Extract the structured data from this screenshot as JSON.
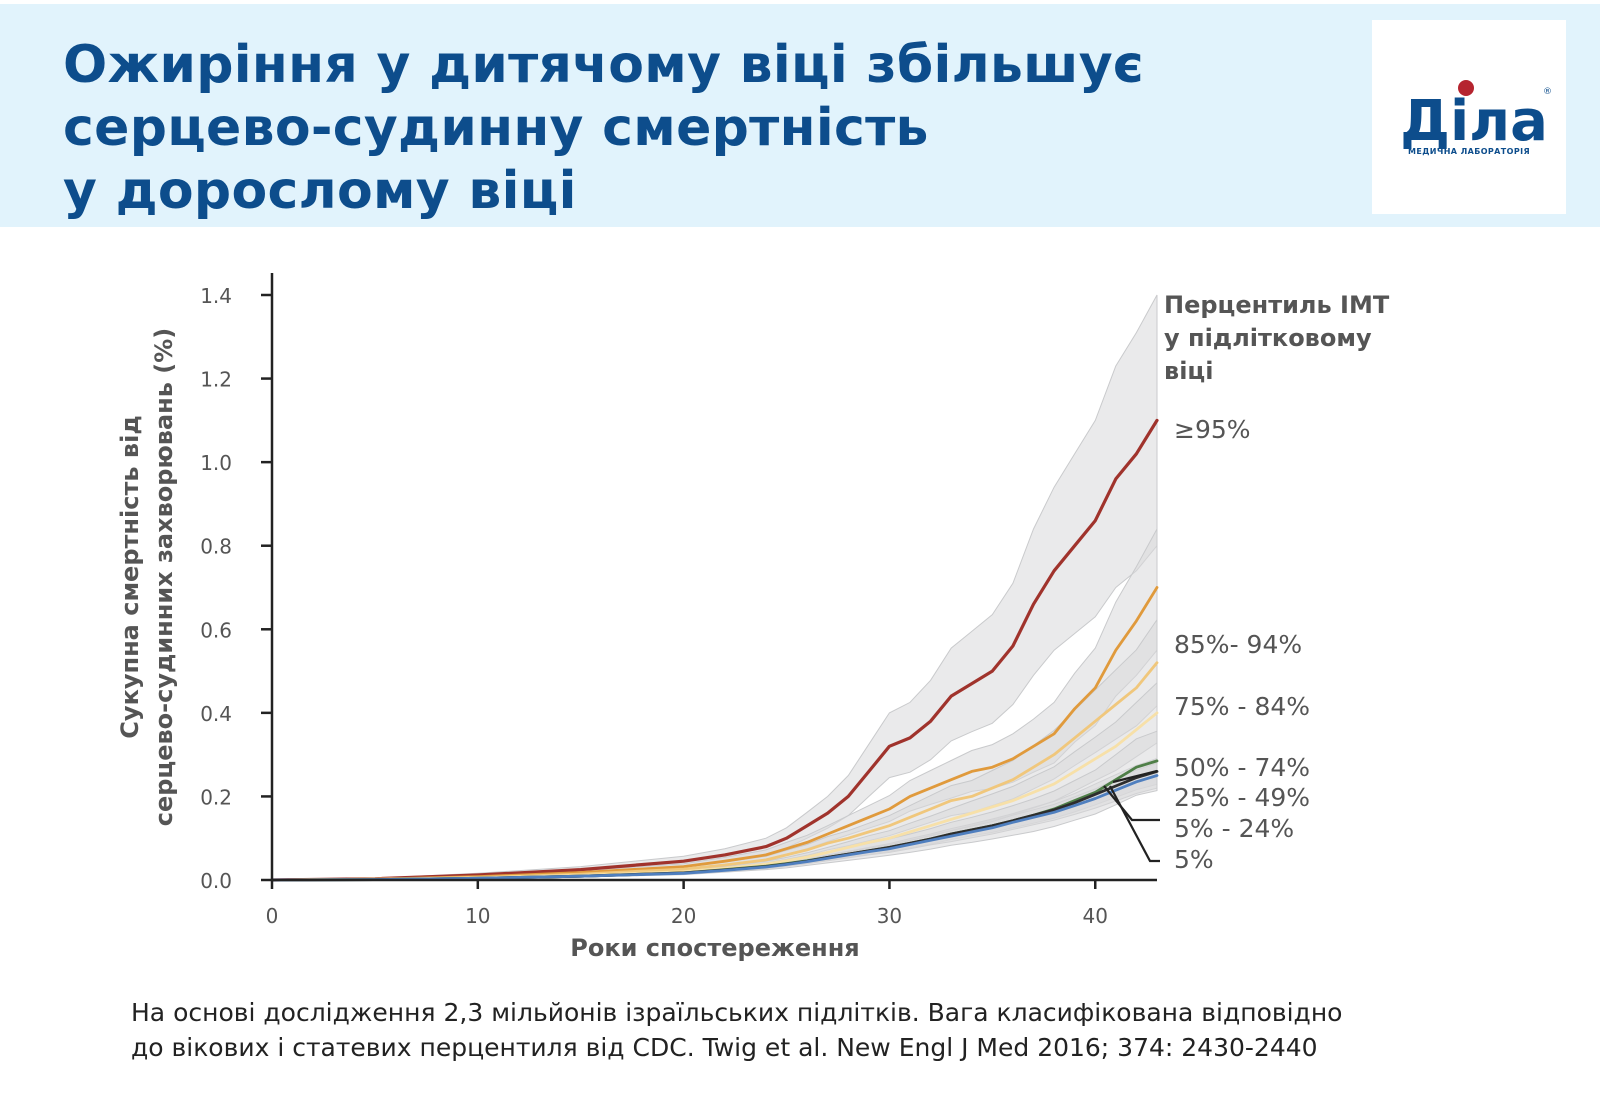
{
  "header": {
    "title_lines": [
      "Ожиріння у дитячому віці збільшує",
      "серцево-судинну смертність",
      "у дорослому віці"
    ]
  },
  "logo": {
    "text": "Діла",
    "subtitle": "МЕДИЧНА ЛАБОРАТОРІЯ",
    "registered": "®",
    "colors": {
      "primary": "#0d4d8c",
      "dot": "#b5242f"
    }
  },
  "chart_data": {
    "type": "line",
    "xlabel": "Роки спостереження",
    "ylabel_lines": [
      "Сукупна смертність від",
      "серцево-судинних захворювань (%)"
    ],
    "xlim": [
      0,
      43
    ],
    "ylim": [
      0,
      1.4
    ],
    "xticks": [
      0,
      10,
      20,
      30,
      40
    ],
    "yticks": [
      0.0,
      0.2,
      0.4,
      0.6,
      0.8,
      1.0,
      1.2,
      1.4
    ],
    "ytick_labels": [
      "0.0",
      "0.2",
      "0.4",
      "0.6",
      "0.8",
      "1.0",
      "1.2",
      "1.4"
    ],
    "legend_title_lines": [
      "Перцентиль ІМТ",
      "у підлітковому",
      "віці"
    ],
    "grid": false,
    "confidence_band_color": "#d8d9db",
    "series": [
      {
        "name": "≥95%",
        "color": "#a0332c",
        "x": [
          0,
          5,
          10,
          15,
          20,
          22,
          24,
          25,
          26,
          27,
          28,
          29,
          30,
          31,
          32,
          33,
          34,
          35,
          36,
          37,
          38,
          39,
          40,
          41,
          42,
          43
        ],
        "y": [
          0,
          0.003,
          0.012,
          0.025,
          0.045,
          0.06,
          0.08,
          0.1,
          0.13,
          0.16,
          0.2,
          0.26,
          0.32,
          0.34,
          0.38,
          0.44,
          0.47,
          0.5,
          0.56,
          0.66,
          0.74,
          0.8,
          0.86,
          0.96,
          1.02,
          1.1
        ],
        "ci_lower": [
          0,
          0.002,
          0.008,
          0.018,
          0.034,
          0.046,
          0.062,
          0.077,
          0.1,
          0.124,
          0.154,
          0.2,
          0.245,
          0.258,
          0.288,
          0.333,
          0.355,
          0.375,
          0.42,
          0.49,
          0.55,
          0.59,
          0.63,
          0.7,
          0.74,
          0.8
        ],
        "ci_upper": [
          0,
          0.004,
          0.016,
          0.032,
          0.057,
          0.075,
          0.1,
          0.125,
          0.162,
          0.2,
          0.25,
          0.325,
          0.4,
          0.425,
          0.478,
          0.555,
          0.595,
          0.635,
          0.71,
          0.84,
          0.94,
          1.02,
          1.1,
          1.23,
          1.31,
          1.4
        ]
      },
      {
        "name": "85%- 94%",
        "color": "#e09a3c",
        "x": [
          0,
          5,
          10,
          15,
          20,
          22,
          24,
          25,
          26,
          27,
          28,
          29,
          30,
          31,
          32,
          33,
          34,
          35,
          36,
          37,
          38,
          39,
          40,
          41,
          42,
          43
        ],
        "y": [
          0,
          0.002,
          0.008,
          0.018,
          0.032,
          0.045,
          0.06,
          0.075,
          0.09,
          0.11,
          0.13,
          0.15,
          0.17,
          0.2,
          0.22,
          0.24,
          0.26,
          0.27,
          0.29,
          0.32,
          0.35,
          0.41,
          0.46,
          0.55,
          0.62,
          0.7
        ],
        "ci_lower": [
          0,
          0.001,
          0.006,
          0.014,
          0.026,
          0.037,
          0.05,
          0.062,
          0.075,
          0.092,
          0.108,
          0.124,
          0.14,
          0.165,
          0.181,
          0.196,
          0.212,
          0.219,
          0.234,
          0.258,
          0.28,
          0.33,
          0.37,
          0.44,
          0.49,
          0.55
        ],
        "ci_upper": [
          0,
          0.003,
          0.01,
          0.022,
          0.039,
          0.054,
          0.072,
          0.09,
          0.107,
          0.13,
          0.154,
          0.178,
          0.202,
          0.238,
          0.262,
          0.286,
          0.31,
          0.324,
          0.35,
          0.385,
          0.425,
          0.495,
          0.555,
          0.665,
          0.75,
          0.84
        ]
      },
      {
        "name": "75% - 84%",
        "color": "#f0c77c",
        "x": [
          0,
          5,
          10,
          15,
          20,
          22,
          24,
          25,
          26,
          27,
          28,
          29,
          30,
          31,
          32,
          33,
          34,
          35,
          36,
          37,
          38,
          39,
          40,
          41,
          42,
          43
        ],
        "y": [
          0,
          0.002,
          0.006,
          0.014,
          0.026,
          0.036,
          0.048,
          0.06,
          0.072,
          0.088,
          0.1,
          0.115,
          0.13,
          0.15,
          0.17,
          0.19,
          0.2,
          0.22,
          0.24,
          0.27,
          0.3,
          0.34,
          0.38,
          0.42,
          0.46,
          0.52
        ],
        "ci_lower": [
          0,
          0.001,
          0.004,
          0.011,
          0.021,
          0.029,
          0.039,
          0.049,
          0.059,
          0.072,
          0.082,
          0.094,
          0.106,
          0.122,
          0.138,
          0.154,
          0.162,
          0.178,
          0.194,
          0.218,
          0.242,
          0.274,
          0.305,
          0.337,
          0.369,
          0.417
        ],
        "ci_upper": [
          0,
          0.003,
          0.008,
          0.017,
          0.031,
          0.043,
          0.057,
          0.071,
          0.085,
          0.104,
          0.118,
          0.136,
          0.154,
          0.178,
          0.202,
          0.226,
          0.238,
          0.262,
          0.286,
          0.322,
          0.358,
          0.406,
          0.455,
          0.503,
          0.551,
          0.623
        ]
      },
      {
        "name": "50% - 74%",
        "color": "#f7e0a8",
        "x": [
          0,
          5,
          10,
          15,
          20,
          22,
          24,
          25,
          26,
          27,
          28,
          29,
          30,
          31,
          32,
          33,
          34,
          35,
          36,
          37,
          38,
          39,
          40,
          41,
          42,
          43
        ],
        "y": [
          0,
          0.002,
          0.005,
          0.011,
          0.02,
          0.028,
          0.038,
          0.046,
          0.055,
          0.066,
          0.078,
          0.09,
          0.1,
          0.115,
          0.13,
          0.145,
          0.16,
          0.175,
          0.19,
          0.21,
          0.23,
          0.26,
          0.29,
          0.32,
          0.36,
          0.4
        ],
        "ci_lower": [
          0,
          0.001,
          0.004,
          0.009,
          0.016,
          0.023,
          0.031,
          0.038,
          0.045,
          0.054,
          0.064,
          0.074,
          0.082,
          0.094,
          0.107,
          0.119,
          0.131,
          0.143,
          0.156,
          0.172,
          0.189,
          0.213,
          0.238,
          0.262,
          0.295,
          0.328
        ],
        "ci_upper": [
          0,
          0.003,
          0.006,
          0.013,
          0.024,
          0.033,
          0.045,
          0.054,
          0.065,
          0.078,
          0.092,
          0.106,
          0.118,
          0.136,
          0.153,
          0.171,
          0.189,
          0.206,
          0.224,
          0.248,
          0.271,
          0.307,
          0.342,
          0.378,
          0.425,
          0.472
        ]
      },
      {
        "name": "25% - 49%",
        "color": "#2d2d2d",
        "x": [
          0,
          5,
          10,
          15,
          20,
          22,
          24,
          25,
          26,
          27,
          28,
          29,
          30,
          31,
          32,
          33,
          34,
          35,
          36,
          37,
          38,
          39,
          40,
          41,
          42,
          43
        ],
        "y": [
          0,
          0.001,
          0.004,
          0.009,
          0.017,
          0.024,
          0.032,
          0.038,
          0.045,
          0.054,
          0.062,
          0.07,
          0.078,
          0.088,
          0.098,
          0.11,
          0.12,
          0.13,
          0.142,
          0.155,
          0.168,
          0.185,
          0.205,
          0.225,
          0.245,
          0.26
        ],
        "ci_lower": [
          0,
          0.001,
          0.003,
          0.008,
          0.015,
          0.021,
          0.028,
          0.033,
          0.04,
          0.048,
          0.055,
          0.062,
          0.069,
          0.077,
          0.086,
          0.097,
          0.106,
          0.114,
          0.125,
          0.136,
          0.148,
          0.163,
          0.18,
          0.198,
          0.216,
          0.229
        ],
        "ci_upper": [
          0,
          0.001,
          0.005,
          0.01,
          0.019,
          0.027,
          0.036,
          0.043,
          0.05,
          0.06,
          0.069,
          0.078,
          0.087,
          0.099,
          0.11,
          0.123,
          0.134,
          0.146,
          0.159,
          0.174,
          0.188,
          0.207,
          0.23,
          0.252,
          0.274,
          0.291
        ]
      },
      {
        "name": "5%  - 24%",
        "color": "#4f7fbf",
        "x": [
          0,
          5,
          10,
          15,
          20,
          22,
          24,
          25,
          26,
          27,
          28,
          29,
          30,
          31,
          32,
          33,
          34,
          35,
          36,
          37,
          38,
          39,
          40,
          41,
          42,
          43
        ],
        "y": [
          0,
          0.001,
          0.004,
          0.009,
          0.016,
          0.023,
          0.031,
          0.037,
          0.044,
          0.052,
          0.06,
          0.068,
          0.075,
          0.085,
          0.095,
          0.105,
          0.115,
          0.125,
          0.138,
          0.15,
          0.162,
          0.178,
          0.195,
          0.215,
          0.235,
          0.25
        ],
        "ci_lower": [
          0,
          0.001,
          0.003,
          0.008,
          0.014,
          0.02,
          0.027,
          0.033,
          0.039,
          0.046,
          0.053,
          0.06,
          0.066,
          0.075,
          0.084,
          0.092,
          0.101,
          0.11,
          0.121,
          0.132,
          0.143,
          0.157,
          0.172,
          0.189,
          0.207,
          0.22
        ],
        "ci_upper": [
          0,
          0.001,
          0.005,
          0.01,
          0.018,
          0.026,
          0.035,
          0.041,
          0.049,
          0.058,
          0.067,
          0.076,
          0.084,
          0.095,
          0.106,
          0.118,
          0.129,
          0.14,
          0.155,
          0.168,
          0.181,
          0.199,
          0.218,
          0.241,
          0.263,
          0.28
        ]
      },
      {
        "name": "5%",
        "color": "#4f7f48",
        "x": [
          0,
          5,
          10,
          15,
          20,
          22,
          24,
          25,
          26,
          27,
          28,
          29,
          30,
          31,
          32,
          33,
          34,
          35,
          36,
          37,
          38,
          39,
          40,
          41,
          42,
          43
        ],
        "y": [
          0,
          0.001,
          0.004,
          0.009,
          0.017,
          0.025,
          0.033,
          0.039,
          0.046,
          0.054,
          0.062,
          0.07,
          0.078,
          0.088,
          0.098,
          0.11,
          0.12,
          0.13,
          0.142,
          0.155,
          0.17,
          0.19,
          0.21,
          0.24,
          0.27,
          0.285
        ],
        "ci_lower": [
          0,
          0.001,
          0.003,
          0.007,
          0.013,
          0.019,
          0.025,
          0.029,
          0.035,
          0.041,
          0.047,
          0.053,
          0.059,
          0.066,
          0.074,
          0.083,
          0.09,
          0.098,
          0.107,
          0.116,
          0.128,
          0.143,
          0.158,
          0.18,
          0.203,
          0.214
        ],
        "ci_upper": [
          0,
          0.001,
          0.005,
          0.011,
          0.021,
          0.031,
          0.041,
          0.049,
          0.058,
          0.068,
          0.078,
          0.088,
          0.098,
          0.11,
          0.123,
          0.138,
          0.15,
          0.163,
          0.178,
          0.194,
          0.213,
          0.238,
          0.263,
          0.3,
          0.338,
          0.356
        ]
      }
    ]
  },
  "footnote": {
    "line1": "На основі дослідження 2,3 мільйонів ізраїльських підлітків. Вага класифікована відповідно",
    "line2": "до вікових і статевих перцентиля від CDC. Twig et al. New Engl J Med 2016; 374: 2430-2440"
  }
}
